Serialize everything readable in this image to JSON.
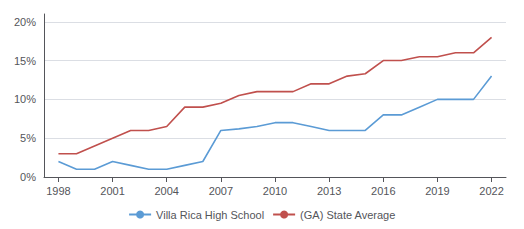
{
  "chart_data": {
    "type": "line",
    "x": [
      1998,
      1999,
      2000,
      2001,
      2002,
      2003,
      2004,
      2005,
      2006,
      2007,
      2008,
      2009,
      2010,
      2011,
      2012,
      2013,
      2014,
      2015,
      2016,
      2017,
      2018,
      2019,
      2020,
      2021,
      2022
    ],
    "series": [
      {
        "name": "Villa Rica High School",
        "color": "#5b9bd5",
        "values": [
          0.02,
          0.01,
          0.01,
          0.02,
          0.015,
          0.01,
          0.01,
          0.015,
          0.02,
          0.06,
          0.062,
          0.065,
          0.07,
          0.07,
          0.065,
          0.06,
          0.06,
          0.06,
          0.08,
          0.08,
          0.09,
          0.1,
          0.1,
          0.1,
          0.13
        ]
      },
      {
        "name": "(GA) State Average",
        "color": "#c0504d",
        "values": [
          0.03,
          0.03,
          0.04,
          0.05,
          0.06,
          0.06,
          0.065,
          0.09,
          0.09,
          0.095,
          0.105,
          0.11,
          0.11,
          0.11,
          0.12,
          0.12,
          0.13,
          0.133,
          0.15,
          0.15,
          0.155,
          0.155,
          0.16,
          0.16,
          0.18
        ]
      }
    ],
    "xlim": [
      1997.2,
      2022.8
    ],
    "xticks": [
      1998,
      2001,
      2004,
      2007,
      2010,
      2013,
      2016,
      2019,
      2022
    ],
    "ylim": [
      0,
      0.21
    ],
    "yticks": [
      {
        "value": 0.0,
        "label": "0%"
      },
      {
        "value": 0.05,
        "label": "5%"
      },
      {
        "value": 0.1,
        "label": "10%"
      },
      {
        "value": 0.15,
        "label": "15%"
      },
      {
        "value": 0.2,
        "label": "20%"
      }
    ],
    "grid": true,
    "legend": "bottom"
  }
}
